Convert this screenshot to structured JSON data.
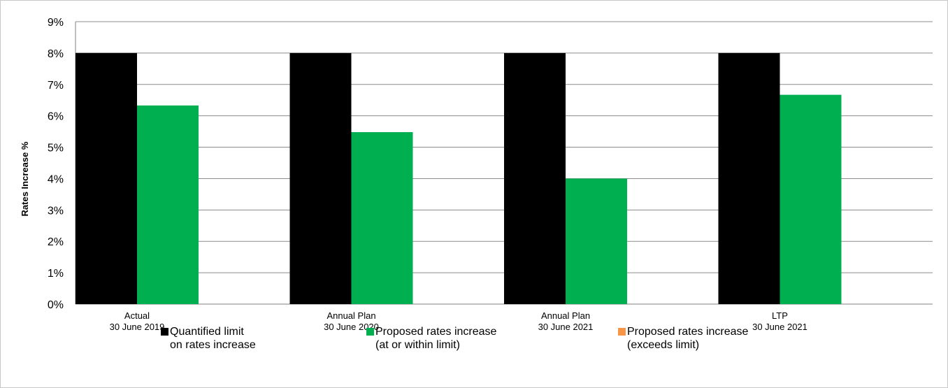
{
  "chart_data": {
    "type": "bar",
    "ylabel": "Rates Increase %",
    "ylim": [
      0,
      9
    ],
    "yticks": [
      "0%",
      "1%",
      "2%",
      "3%",
      "4%",
      "5%",
      "6%",
      "7%",
      "8%",
      "9%"
    ],
    "grid": true,
    "categories": [
      [
        "Actual",
        "30 June 2019"
      ],
      [
        "Annual Plan",
        "30 June 2020"
      ],
      [
        "Annual Plan",
        "30 June 2021"
      ],
      [
        "LTP",
        "30 June 2021"
      ]
    ],
    "series": [
      {
        "name": [
          "Quantified limit",
          "on rates increase"
        ],
        "values": [
          8,
          8,
          8,
          8
        ],
        "color": "#000000"
      },
      {
        "name": [
          "Proposed rates increase",
          "(at or within limit)"
        ],
        "values": [
          6.33,
          5.48,
          4.0,
          6.67
        ],
        "color": "#00b050"
      },
      {
        "name": [
          "Proposed rates increase",
          "(exceeds limit)"
        ],
        "values": [
          null,
          null,
          null,
          null
        ],
        "color": "#f79646"
      }
    ],
    "legend_position": "bottom"
  }
}
